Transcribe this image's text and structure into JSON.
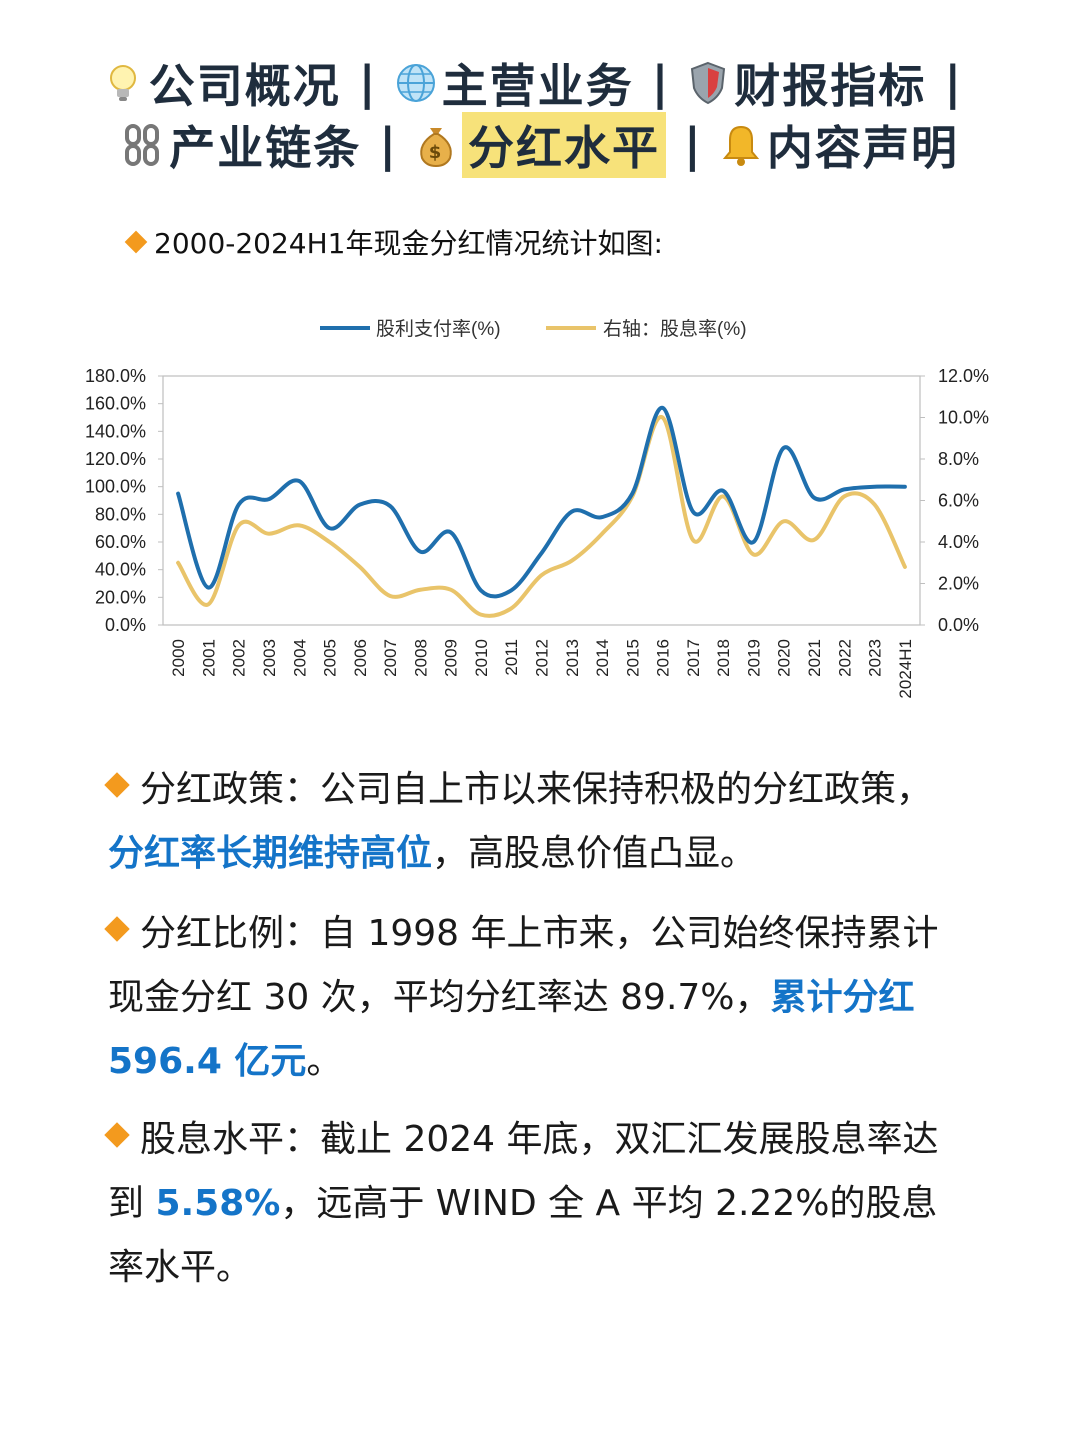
{
  "nav": {
    "row1": [
      {
        "icon": "lightbulb-icon",
        "label": "公司概况"
      },
      {
        "icon": "globe-icon",
        "label": "主营业务"
      },
      {
        "icon": "shield-icon",
        "label": "财报指标"
      }
    ],
    "row2": [
      {
        "icon": "chain-icon",
        "label": "产业链条"
      },
      {
        "icon": "money-bag-icon",
        "label": "分红水平",
        "active": true
      },
      {
        "icon": "bell-icon",
        "label": "内容声明"
      }
    ],
    "separator": "|"
  },
  "heading": "2000-2024H1年现金分红情况统计如图:",
  "paragraphs": {
    "policy": {
      "prefix": "分红政策：公司自上市以来保持积极的分红政策，",
      "highlight": "分红率长期维持高位",
      "suffix": "，高股息价值凸显。"
    },
    "ratio": {
      "prefix": "分红比例：自 1998 年上市来，公司始终保持累计现金分红 30 次，平均分红率达 89.7%，",
      "highlight": "累计分红 596.4 亿元",
      "suffix": "。"
    },
    "yield": {
      "prefix": "股息水平：截止 2024 年底，双汇汇发展股息率达到 ",
      "highlight": "5.58%",
      "suffix": "，远高于 WIND 全 A 平均 2.22%的股息率水平。"
    }
  },
  "chart_data": {
    "type": "line",
    "title": "",
    "categories": [
      "2000",
      "2001",
      "2002",
      "2003",
      "2004",
      "2005",
      "2006",
      "2007",
      "2008",
      "2009",
      "2010",
      "2011",
      "2012",
      "2013",
      "2014",
      "2015",
      "2016",
      "2017",
      "2018",
      "2019",
      "2020",
      "2021",
      "2022",
      "2023",
      "2024H1"
    ],
    "series": [
      {
        "name": "股利支付率(%)",
        "axis": "left",
        "color": "#1f6fad",
        "values": [
          95,
          27,
          87,
          91,
          104,
          70,
          87,
          86,
          53,
          67,
          25,
          25,
          52,
          82,
          78,
          95,
          157,
          82,
          97,
          60,
          128,
          92,
          98,
          100,
          100
        ]
      },
      {
        "name": "右轴：股息率(%)",
        "axis": "right",
        "color": "#e9c46a",
        "values": [
          3.0,
          1.0,
          4.8,
          4.4,
          4.8,
          4.0,
          2.8,
          1.4,
          1.7,
          1.7,
          0.5,
          0.8,
          2.4,
          3.1,
          4.4,
          6.2,
          10.0,
          4.1,
          6.2,
          3.4,
          5.0,
          4.1,
          6.2,
          5.8,
          2.8
        ]
      }
    ],
    "left_axis": {
      "ylim": [
        0,
        180
      ],
      "ticks": [
        "0.0%",
        "20.0%",
        "40.0%",
        "60.0%",
        "80.0%",
        "100.0%",
        "120.0%",
        "140.0%",
        "160.0%",
        "180.0%"
      ]
    },
    "right_axis": {
      "ylim": [
        0,
        12
      ],
      "ticks": [
        "0.0%",
        "2.0%",
        "4.0%",
        "6.0%",
        "8.0%",
        "10.0%",
        "12.0%"
      ]
    },
    "legend": "top-center",
    "grid": false
  }
}
